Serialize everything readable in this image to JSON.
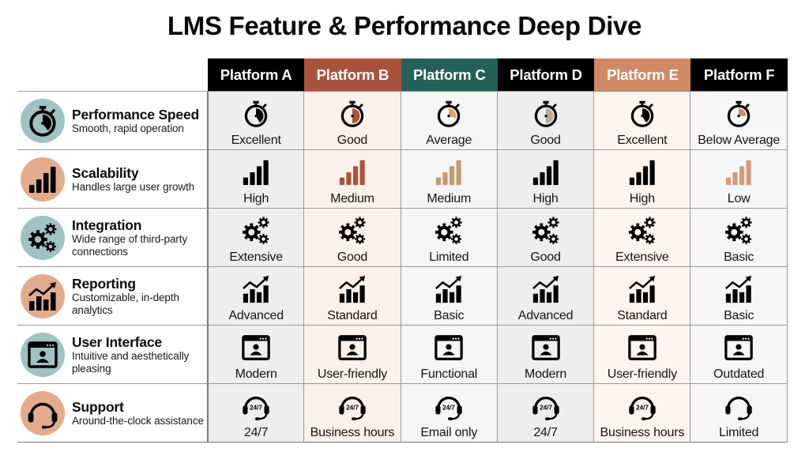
{
  "title": "LMS Feature & Performance Deep Dive",
  "platforms": [
    {
      "name": "Platform A",
      "color": "#000000"
    },
    {
      "name": "Platform B",
      "color": "#a9533d"
    },
    {
      "name": "Platform C",
      "color": "#25605b"
    },
    {
      "name": "Platform D",
      "color": "#000000"
    },
    {
      "name": "Platform E",
      "color": "#d08865"
    },
    {
      "name": "Platform F",
      "color": "#000000"
    }
  ],
  "features": [
    {
      "title": "Performance Speed",
      "desc": "Smooth, rapid operation",
      "icon": "stopwatch-icon",
      "circle": "#9fc2c2",
      "values": [
        "Excellent",
        "Good",
        "Average",
        "Good",
        "Excellent",
        "Below Average"
      ]
    },
    {
      "title": "Scalability",
      "desc": "Handles large user growth",
      "icon": "bar-signal-icon",
      "circle": "#e2ac8c",
      "values": [
        "High",
        "Medium",
        "Medium",
        "High",
        "High",
        "Low"
      ]
    },
    {
      "title": "Integration",
      "desc": "Wide range of third-party connections",
      "icon": "gears-icon",
      "circle": "#9fc2c2",
      "values": [
        "Extensive",
        "Good",
        "Limited",
        "Good",
        "Extensive",
        "Basic"
      ]
    },
    {
      "title": "Reporting",
      "desc": "Customizable, in-depth analytics",
      "icon": "trend-chart-icon",
      "circle": "#e2ac8c",
      "values": [
        "Advanced",
        "Standard",
        "Basic",
        "Advanced",
        "Standard",
        "Basic"
      ]
    },
    {
      "title": "User Interface",
      "desc": "Intuitive and aesthetically pleasing",
      "icon": "browser-user-icon",
      "circle": "#9fc2c2",
      "values": [
        "Modern",
        "User-friendly",
        "Functional",
        "Modern",
        "User-friendly",
        "Outdated"
      ]
    },
    {
      "title": "Support",
      "desc": "Around-the-clock assistance",
      "icon": "headset-icon",
      "circle": "#e2ac8c",
      "values": [
        "24/7",
        "Business hours",
        "Email only",
        "24/7",
        "Business hours",
        "Limited"
      ]
    }
  ],
  "icon_text": {
    "headset_badge": "24/7"
  },
  "icon_colors": {
    "speed_fill": [
      "#000000",
      "#a9533d",
      "#d7a86e",
      "#b8a98f",
      "#000000",
      "#d08865"
    ],
    "bars_fill": [
      "#000000",
      "#a9533d",
      "#c49a70",
      "#000000",
      "#000000",
      "#d79a76"
    ]
  }
}
